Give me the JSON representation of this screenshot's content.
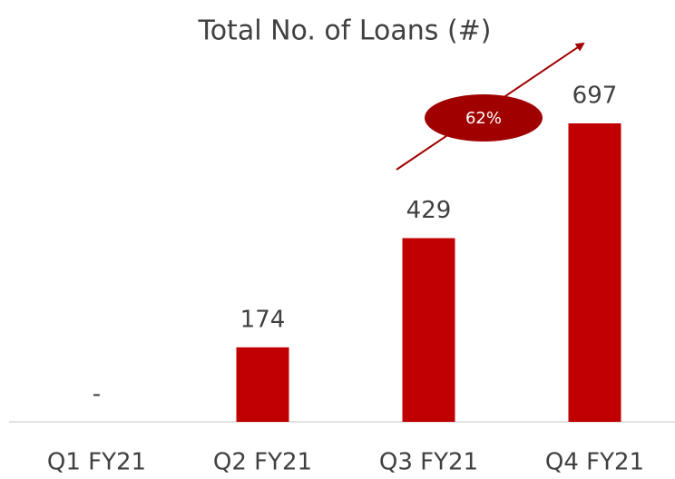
{
  "chart_data": {
    "type": "bar",
    "title": "Total No. of Loans (#)",
    "categories": [
      "Q1 FY21",
      "Q2 FY21",
      "Q3 FY21",
      "Q4 FY21"
    ],
    "values": [
      0,
      174,
      429,
      697
    ],
    "value_labels": [
      "-",
      "174",
      "429",
      "697"
    ],
    "color": "#c00000",
    "annotations": [
      "62%"
    ]
  }
}
